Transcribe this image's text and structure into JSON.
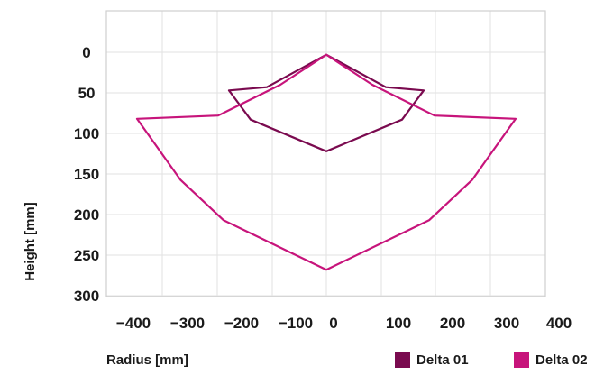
{
  "chart_data": {
    "type": "line",
    "title": "",
    "xlabel": "Radius [mm]",
    "ylabel": "Height [mm]",
    "xlim": [
      -400,
      400
    ],
    "ylim": [
      300,
      0
    ],
    "y_inverted": true,
    "grid": true,
    "x_ticks": [
      -400,
      -300,
      -200,
      -100,
      0,
      100,
      200,
      300,
      400
    ],
    "x_tick_labels": [
      "−400",
      "−300",
      "−200",
      "−100",
      "0",
      "100",
      "200",
      "300",
      "400"
    ],
    "y_ticks": [
      0,
      50,
      100,
      150,
      200,
      250,
      300
    ],
    "y_tick_labels": [
      "0",
      "50",
      "100",
      "150",
      "200",
      "250",
      "300"
    ],
    "legend_position": "bottom-right",
    "series": [
      {
        "name": "Delta 01",
        "color": "#7a0a4f",
        "closed": true,
        "points": [
          [
            0,
            3
          ],
          [
            110,
            43
          ],
          [
            180,
            47
          ],
          [
            140,
            83
          ],
          [
            0,
            122
          ],
          [
            -140,
            83
          ],
          [
            -180,
            47
          ],
          [
            -110,
            43
          ]
        ]
      },
      {
        "name": "Delta 02",
        "color": "#c7147b",
        "closed": true,
        "points": [
          [
            0,
            3
          ],
          [
            85,
            40
          ],
          [
            200,
            78
          ],
          [
            350,
            82
          ],
          [
            270,
            157
          ],
          [
            190,
            207
          ],
          [
            0,
            268
          ],
          [
            -190,
            207
          ],
          [
            -270,
            157
          ],
          [
            -350,
            82
          ],
          [
            -200,
            78
          ],
          [
            -85,
            40
          ]
        ]
      }
    ]
  }
}
